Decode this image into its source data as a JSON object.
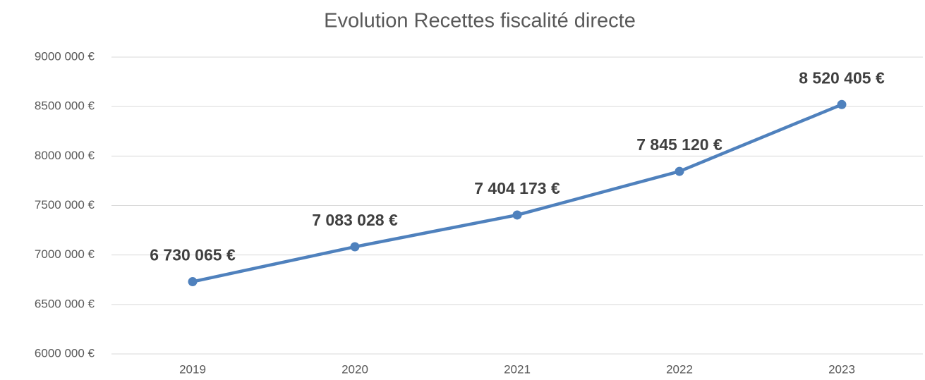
{
  "chart_data": {
    "type": "line",
    "title": "Evolution Recettes fiscalité directe",
    "categories": [
      "2019",
      "2020",
      "2021",
      "2022",
      "2023"
    ],
    "series": [
      {
        "name": "Recettes fiscalité directe",
        "color": "#4f81bd",
        "values": [
          6730065,
          7083028,
          7404173,
          7845120,
          8520405
        ],
        "value_labels": [
          "6 730 065 €",
          "7 083 028 €",
          "7 404 173 €",
          "7 845 120 €",
          "8 520 405 €"
        ]
      }
    ],
    "ylim": [
      6000000,
      9000000
    ],
    "yticks": [
      {
        "value": 6000000,
        "label": "6000 000 €"
      },
      {
        "value": 6500000,
        "label": "6500 000 €"
      },
      {
        "value": 7000000,
        "label": "7000 000 €"
      },
      {
        "value": 7500000,
        "label": "7500 000 €"
      },
      {
        "value": 8000000,
        "label": "8000 000 €"
      },
      {
        "value": 8500000,
        "label": "8500 000 €"
      },
      {
        "value": 9000000,
        "label": "9000 000 €"
      }
    ],
    "grid": true,
    "legend": false
  }
}
